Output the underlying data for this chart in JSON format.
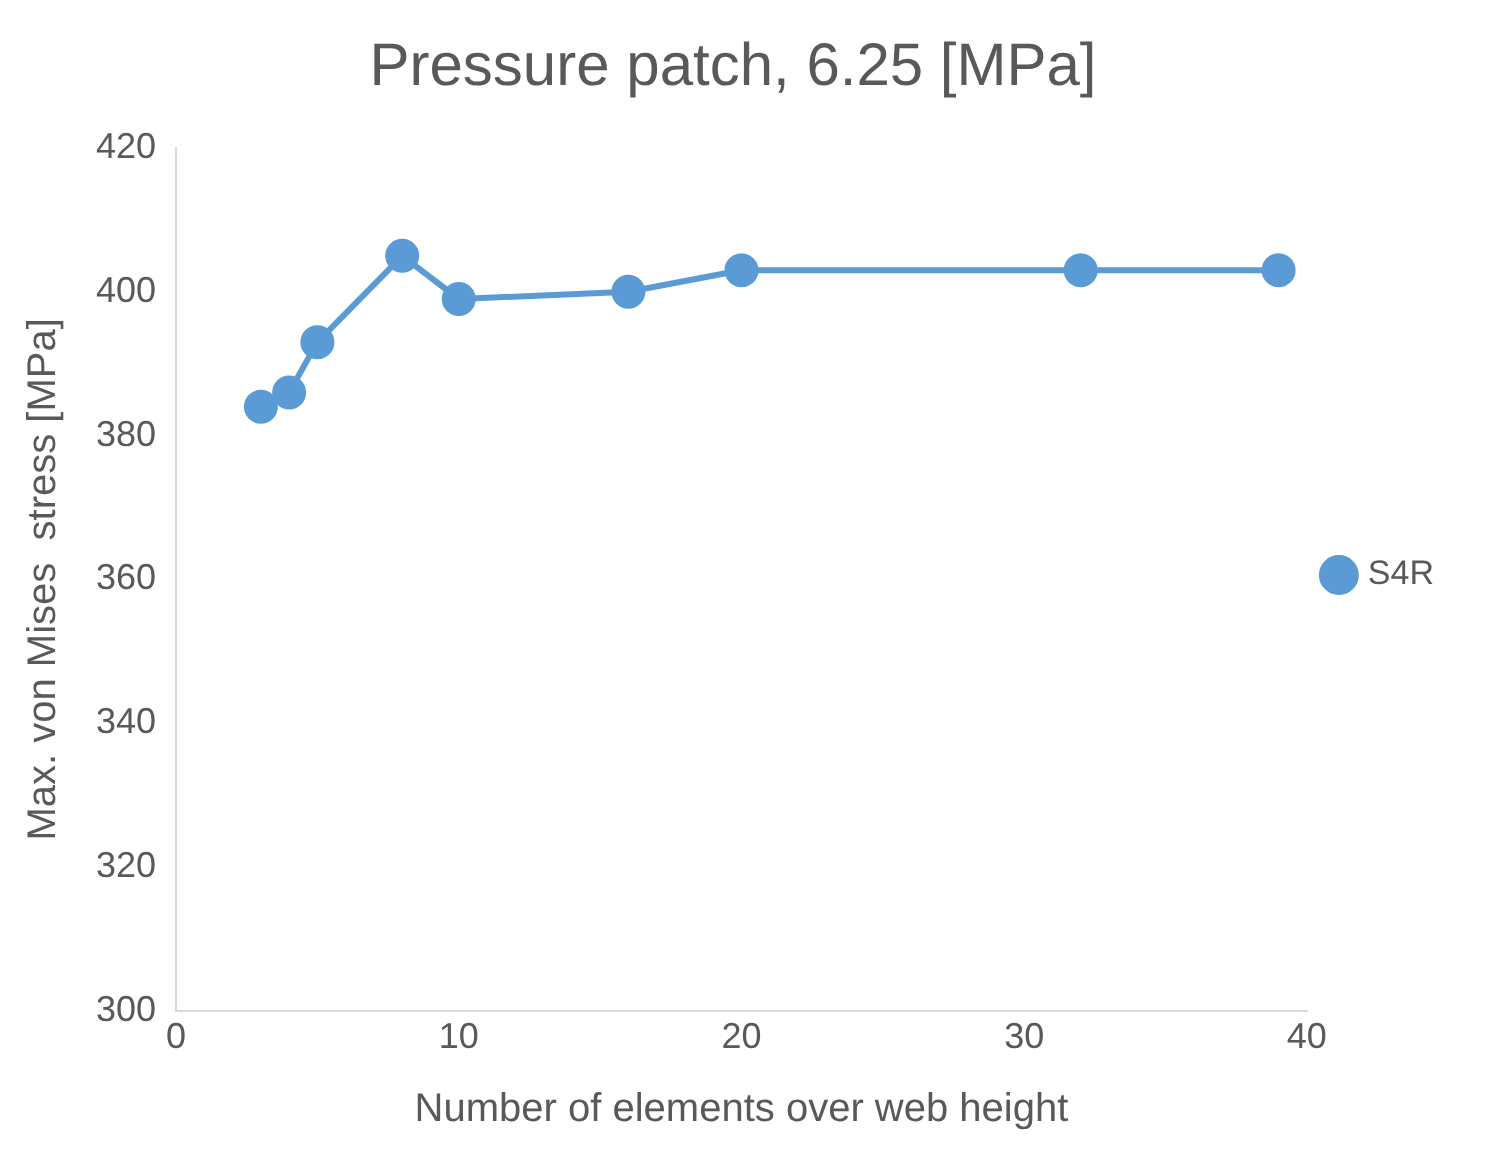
{
  "chart_data": {
    "type": "line",
    "title": "Pressure patch, 6.25 [MPa]",
    "xlabel": "Number of elements over web height",
    "ylabel": "Max. von Mises  stress [MPa]",
    "x": [
      3,
      4,
      5,
      8,
      10,
      16,
      20,
      32,
      39
    ],
    "series": [
      {
        "name": "S4R",
        "color": "#5b9bd5",
        "values": [
          384,
          386,
          393,
          405,
          399,
          400,
          403,
          403,
          403
        ]
      }
    ],
    "xlim": [
      0,
      40
    ],
    "xticks": [
      0,
      10,
      20,
      30,
      40
    ],
    "ylim": [
      300,
      420
    ],
    "yticks": [
      300,
      320,
      340,
      360,
      380,
      400,
      420
    ],
    "grid": false,
    "legend": "right",
    "marker": "circle",
    "line_style": "solid"
  }
}
